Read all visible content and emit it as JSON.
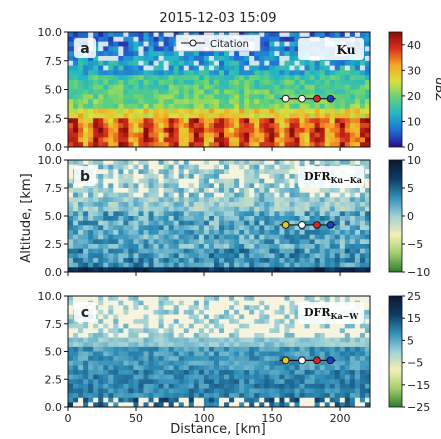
{
  "chart_data": {
    "type": "heatmap",
    "title": "2015-12-03 15:09",
    "xlabel": "Distance, [km]",
    "ylabel": "Altitude, [km]",
    "xlim": [
      0,
      222
    ],
    "ylim": [
      0,
      10
    ],
    "x_ticks": [
      "0",
      "50",
      "100",
      "150",
      "200"
    ],
    "y_ticks": [
      "0.0",
      "2.5",
      "5.0",
      "7.5",
      "10.0"
    ],
    "legend": {
      "entries": [
        "Citation"
      ],
      "placement": "top-center (panel a)"
    },
    "track_markers": {
      "altitude_km": 4.2,
      "distances_km": [
        160,
        172,
        183,
        193
      ],
      "colors": [
        "#e8c62a",
        "#ffffff",
        "#d62728",
        "#1f3fbf"
      ]
    },
    "panels": [
      {
        "label": "a",
        "variable": "Ku",
        "colorbar_title": "dBZ",
        "colorbar_ticks": [
          "0",
          "10",
          "20",
          "30",
          "40"
        ],
        "clim": [
          0,
          45
        ],
        "colormap": [
          "#2b0a8a",
          "#1f6ed4",
          "#23b5c7",
          "#5fd27a",
          "#d8e23a",
          "#f7a526",
          "#d6301c",
          "#8a0a0a"
        ]
      },
      {
        "label": "b",
        "variable_main": "DFR",
        "variable_sub": "Ku−Ka",
        "colorbar_ticks": [
          "−10",
          "−5",
          "0",
          "5",
          "10"
        ],
        "clim": [
          -10,
          10
        ],
        "colormap": [
          "#2f7d2f",
          "#a4cf6a",
          "#f4efb5",
          "#9fd0d6",
          "#2f8fb8",
          "#0d3b66",
          "#081a33"
        ]
      },
      {
        "label": "c",
        "variable_main": "DFR",
        "variable_sub": "Ka−W",
        "colorbar_ticks": [
          "−25",
          "−15",
          "−5",
          "5",
          "15",
          "25"
        ],
        "clim": [
          -25,
          25
        ],
        "colormap": [
          "#2f7d2f",
          "#a4cf6a",
          "#f4efb5",
          "#9fd0d6",
          "#2f8fb8",
          "#0d3b66",
          "#081a33"
        ]
      }
    ]
  }
}
